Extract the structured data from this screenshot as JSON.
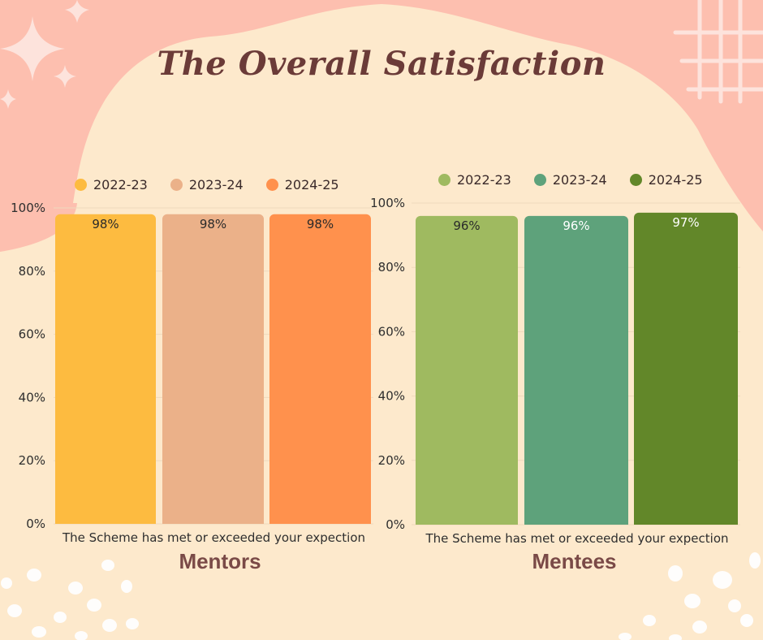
{
  "title": "The Overall Satisfaction",
  "chart_data": [
    {
      "type": "bar",
      "categories": [
        "The Scheme has met or exceeded your expection"
      ],
      "series": [
        {
          "name": "2022-23",
          "values": [
            98
          ],
          "color": "#fdbb40"
        },
        {
          "name": "2023-24",
          "values": [
            98
          ],
          "color": "#ebb189"
        },
        {
          "name": "2024-25",
          "values": [
            98
          ],
          "color": "#ff914d"
        }
      ],
      "data_labels": [
        "98%",
        "98%",
        "98%"
      ],
      "group_label": "Mentors",
      "ylim": [
        0,
        100
      ],
      "yticks": [
        "0%",
        "20%",
        "40%",
        "60%",
        "80%",
        "100%"
      ],
      "legend": "top",
      "grid": true
    },
    {
      "type": "bar",
      "categories": [
        "The Scheme has met or exceeded your expection"
      ],
      "series": [
        {
          "name": "2022-23",
          "values": [
            96
          ],
          "color": "#9fba60"
        },
        {
          "name": "2023-24",
          "values": [
            96
          ],
          "color": "#5ea27b"
        },
        {
          "name": "2024-25",
          "values": [
            97
          ],
          "color": "#628729"
        }
      ],
      "data_labels": [
        "96%",
        "96%",
        "97%"
      ],
      "group_label": "Mentees",
      "ylim": [
        0,
        100
      ],
      "yticks": [
        "0%",
        "20%",
        "40%",
        "60%",
        "80%",
        "100%"
      ],
      "legend": "top",
      "grid": true
    }
  ]
}
